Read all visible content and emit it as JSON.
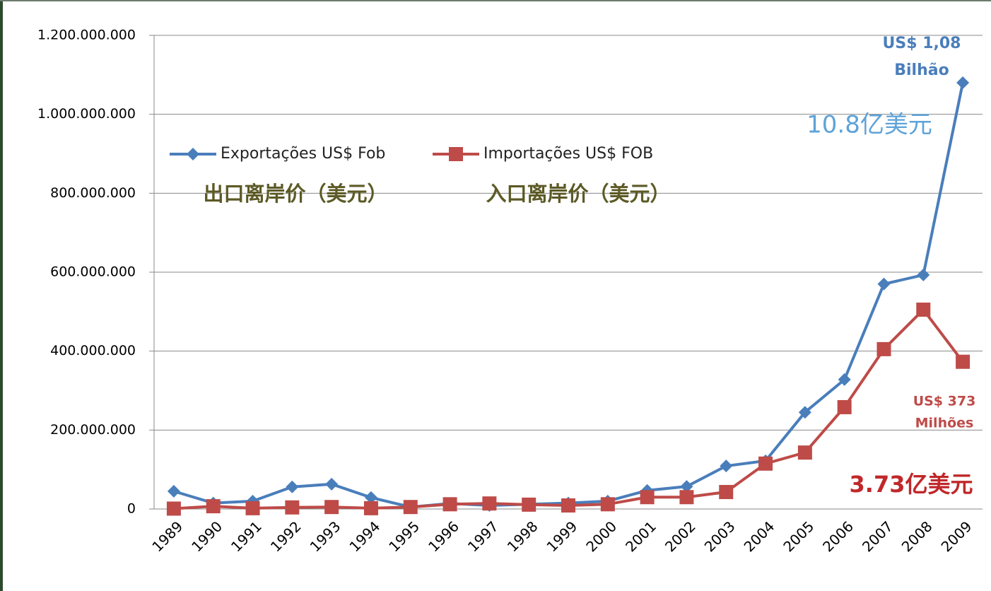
{
  "chart_data": {
    "type": "line",
    "categories": [
      "1989",
      "1990",
      "1991",
      "1992",
      "1993",
      "1994",
      "1995",
      "1996",
      "1997",
      "1998",
      "1999",
      "2000",
      "2001",
      "2002",
      "2003",
      "2004",
      "2005",
      "2006",
      "2007",
      "2008",
      "2009"
    ],
    "series": [
      {
        "name": "Exportações US$ Fob",
        "color": "#4a7ebb",
        "marker": "diamond",
        "values": [
          45000000,
          15000000,
          20000000,
          56000000,
          63000000,
          29000000,
          5000000,
          14000000,
          9000000,
          12000000,
          15000000,
          20000000,
          47000000,
          57000000,
          109000000,
          122000000,
          245000000,
          328000000,
          570000000,
          593000000,
          1080000000
        ]
      },
      {
        "name": "Importações US$ FOB",
        "color": "#be4b48",
        "marker": "square",
        "values": [
          1000000,
          7000000,
          2000000,
          4000000,
          5000000,
          2000000,
          5000000,
          12000000,
          14000000,
          11000000,
          9000000,
          12000000,
          30000000,
          30000000,
          43000000,
          115000000,
          143000000,
          258000000,
          405000000,
          505000000,
          373000000
        ]
      }
    ],
    "ylim": [
      0,
      1200000000
    ],
    "yticks": [
      0,
      {
        "value": 200000000,
        "label": "200.000.000"
      },
      {
        "value": 400000000,
        "label": "400.000.000"
      },
      {
        "value": 600000000,
        "label": "600.000.000"
      },
      {
        "value": 800000000,
        "label": "800.000.000"
      },
      {
        "value": 1000000000,
        "label": "1.000.000.000"
      },
      {
        "value": 1200000000,
        "label": "1.200.000.000"
      }
    ],
    "grid": true,
    "annotations": [
      {
        "lines": [
          "US$ 1,08",
          "Bilhão"
        ],
        "color": "#4a7ebb"
      },
      {
        "lines": [
          "10.8亿美元"
        ],
        "color": "#5ea3d8"
      },
      {
        "lines": [
          "US$ 373",
          "Milhões"
        ],
        "color": "#be4b48"
      },
      {
        "lines": [
          "3.73亿美元"
        ],
        "color": "#c0282a"
      },
      {
        "lines": [
          "出口离岸价（美元）"
        ],
        "color": "#5c5a26"
      },
      {
        "lines": [
          "入口离岸价（美元）"
        ],
        "color": "#5c5a26"
      }
    ]
  }
}
